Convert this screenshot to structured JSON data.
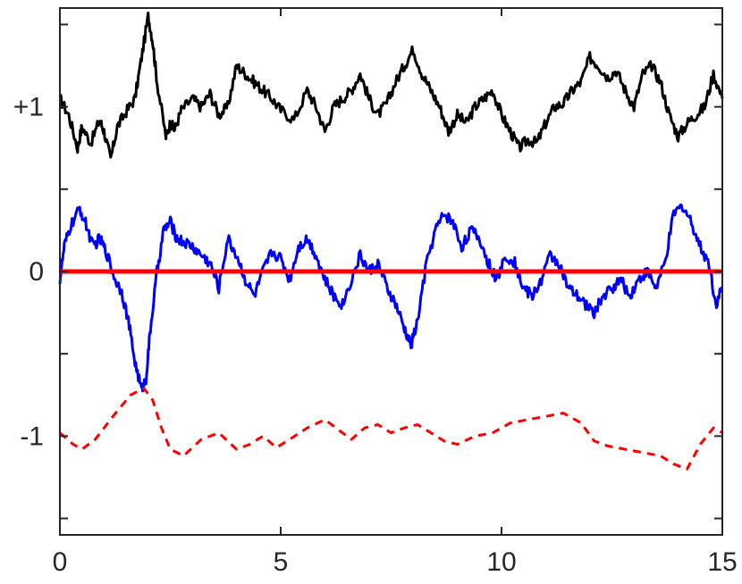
{
  "chart_data": {
    "type": "line",
    "title": "",
    "xlabel": "",
    "ylabel": "",
    "xlim": [
      0,
      15
    ],
    "ylim": [
      -1.6,
      1.6
    ],
    "grid": false,
    "legend": "none",
    "x_ticks": [
      {
        "value": 0,
        "label": "0"
      },
      {
        "value": 5,
        "label": "5"
      },
      {
        "value": 10,
        "label": "10"
      },
      {
        "value": 15,
        "label": "15"
      }
    ],
    "y_ticks": [
      {
        "value": 1,
        "label": "+1"
      },
      {
        "value": 0,
        "label": "0"
      },
      {
        "value": -1,
        "label": "-1"
      }
    ],
    "y_minor_ticks": [
      1.5,
      0.5,
      -0.5,
      -1.5
    ],
    "series": [
      {
        "color": "#000000",
        "style": "solid",
        "x": [
          0.0,
          0.2,
          0.4,
          0.5,
          0.7,
          0.9,
          1.0,
          1.15,
          1.3,
          1.5,
          1.7,
          1.85,
          2.0,
          2.1,
          2.2,
          2.4,
          2.5,
          2.6,
          2.75,
          3.0,
          3.2,
          3.4,
          3.6,
          3.8,
          4.0,
          4.2,
          4.4,
          4.6,
          4.8,
          5.0,
          5.3,
          5.6,
          5.8,
          6.0,
          6.2,
          6.4,
          6.6,
          6.8,
          7.0,
          7.2,
          7.4,
          7.6,
          7.8,
          8.0,
          8.2,
          8.4,
          8.6,
          8.8,
          9.0,
          9.2,
          9.4,
          9.6,
          9.8,
          10.0,
          10.2,
          10.4,
          10.6,
          10.8,
          11.0,
          11.2,
          11.4,
          11.6,
          11.8,
          12.0,
          12.2,
          12.4,
          12.6,
          12.8,
          13.0,
          13.2,
          13.4,
          13.6,
          13.8,
          14.0,
          14.2,
          14.4,
          14.6,
          14.8,
          15.0
        ],
        "values": [
          1.05,
          0.95,
          0.75,
          0.88,
          0.78,
          0.92,
          0.85,
          0.68,
          0.88,
          0.97,
          1.05,
          1.3,
          1.55,
          1.4,
          1.15,
          0.82,
          0.9,
          0.86,
          0.98,
          1.05,
          1.0,
          1.08,
          0.95,
          1.0,
          1.25,
          1.2,
          1.15,
          1.1,
          1.05,
          0.98,
          0.92,
          1.1,
          1.0,
          0.85,
          1.0,
          1.05,
          1.1,
          1.2,
          1.05,
          0.95,
          1.02,
          1.15,
          1.25,
          1.35,
          1.2,
          1.1,
          1.0,
          0.85,
          0.95,
          0.9,
          1.0,
          1.05,
          1.1,
          0.95,
          0.85,
          0.75,
          0.8,
          0.78,
          0.9,
          1.0,
          1.02,
          1.1,
          1.15,
          1.3,
          1.25,
          1.18,
          1.22,
          1.1,
          1.0,
          1.2,
          1.25,
          1.15,
          0.95,
          0.82,
          0.9,
          0.95,
          1.0,
          1.2,
          1.05
        ]
      },
      {
        "color": "#0000ff",
        "style": "solid",
        "x": [
          0.0,
          0.1,
          0.25,
          0.45,
          0.6,
          0.75,
          0.9,
          1.05,
          1.25,
          1.4,
          1.55,
          1.7,
          1.85,
          1.95,
          2.05,
          2.2,
          2.35,
          2.5,
          2.65,
          2.8,
          3.0,
          3.2,
          3.4,
          3.6,
          3.8,
          4.0,
          4.2,
          4.4,
          4.6,
          4.8,
          5.0,
          5.2,
          5.4,
          5.6,
          5.8,
          6.0,
          6.2,
          6.4,
          6.6,
          6.8,
          7.0,
          7.2,
          7.4,
          7.6,
          7.8,
          7.95,
          8.1,
          8.3,
          8.5,
          8.7,
          8.9,
          9.1,
          9.3,
          9.5,
          9.7,
          9.9,
          10.1,
          10.3,
          10.5,
          10.7,
          10.9,
          11.1,
          11.3,
          11.5,
          11.7,
          11.9,
          12.1,
          12.3,
          12.5,
          12.7,
          12.9,
          13.1,
          13.3,
          13.5,
          13.7,
          13.9,
          14.1,
          14.3,
          14.5,
          14.7,
          14.85,
          15.0
        ],
        "values": [
          -0.05,
          0.15,
          0.28,
          0.38,
          0.28,
          0.15,
          0.2,
          0.12,
          -0.05,
          -0.12,
          -0.3,
          -0.55,
          -0.72,
          -0.65,
          -0.35,
          0.0,
          0.25,
          0.3,
          0.2,
          0.18,
          0.15,
          0.1,
          0.05,
          -0.1,
          0.2,
          0.1,
          -0.05,
          -0.15,
          0.0,
          0.12,
          0.08,
          -0.05,
          0.15,
          0.2,
          0.1,
          -0.05,
          -0.15,
          -0.2,
          -0.05,
          0.1,
          0.0,
          0.05,
          -0.1,
          -0.2,
          -0.35,
          -0.45,
          -0.3,
          0.05,
          0.25,
          0.35,
          0.3,
          0.15,
          0.25,
          0.2,
          0.05,
          -0.05,
          0.1,
          0.05,
          -0.1,
          -0.15,
          -0.05,
          0.1,
          0.05,
          -0.1,
          -0.15,
          -0.2,
          -0.25,
          -0.15,
          -0.1,
          -0.05,
          -0.15,
          -0.05,
          0.0,
          -0.1,
          0.05,
          0.35,
          0.4,
          0.3,
          0.15,
          0.05,
          -0.2,
          -0.1
        ]
      },
      {
        "color": "#ff0000",
        "style": "solid",
        "x": [
          0,
          1,
          2,
          3,
          4,
          5,
          6,
          7,
          8,
          9,
          10,
          11,
          12,
          13,
          14,
          15
        ],
        "values": [
          0.0,
          0.0,
          0.0,
          0.0,
          0.0,
          0.0,
          0.0,
          0.0,
          0.0,
          0.0,
          0.0,
          0.0,
          0.0,
          0.0,
          0.0,
          0.0
        ]
      },
      {
        "color": "#ff0000",
        "style": "dashed",
        "x": [
          0.0,
          0.3,
          0.5,
          0.8,
          1.2,
          1.6,
          1.9,
          2.1,
          2.3,
          2.5,
          2.8,
          3.2,
          3.6,
          4.0,
          4.3,
          4.6,
          4.9,
          5.2,
          5.6,
          6.0,
          6.3,
          6.6,
          6.9,
          7.2,
          7.5,
          7.8,
          8.1,
          8.4,
          8.7,
          9.0,
          9.4,
          9.8,
          10.2,
          10.6,
          11.0,
          11.4,
          11.8,
          12.1,
          12.4,
          12.8,
          13.2,
          13.6,
          13.9,
          14.2,
          14.5,
          14.8,
          15.0
        ],
        "values": [
          -0.98,
          -1.05,
          -1.08,
          -1.02,
          -0.88,
          -0.75,
          -0.71,
          -0.78,
          -0.95,
          -1.08,
          -1.12,
          -1.02,
          -0.98,
          -1.08,
          -1.05,
          -1.0,
          -1.07,
          -1.02,
          -0.95,
          -0.9,
          -0.96,
          -1.02,
          -0.95,
          -0.93,
          -0.98,
          -0.95,
          -0.93,
          -0.98,
          -1.03,
          -1.05,
          -1.0,
          -0.98,
          -0.92,
          -0.9,
          -0.88,
          -0.86,
          -0.92,
          -1.03,
          -1.06,
          -1.08,
          -1.1,
          -1.12,
          -1.17,
          -1.2,
          -1.05,
          -0.95,
          -0.98
        ]
      }
    ]
  }
}
